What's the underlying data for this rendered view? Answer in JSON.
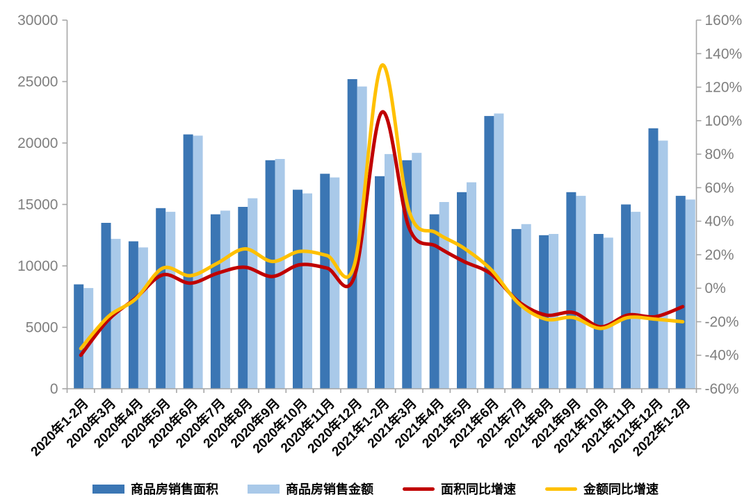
{
  "chart_data": {
    "type": "combo-bar-line",
    "title": "",
    "categories": [
      "2020年1-2月",
      "2020年3月",
      "2020年4月",
      "2020年5月",
      "2020年6月",
      "2020年7月",
      "2020年8月",
      "2020年9月",
      "2020年10月",
      "2020年11月",
      "2020年12月",
      "2021年1-2月",
      "2021年3月",
      "2021年4月",
      "2021年5月",
      "2021年6月",
      "2021年7月",
      "2021年8月",
      "2021年9月",
      "2021年10月",
      "2021年11月",
      "2021年12月",
      "2022年1-2月"
    ],
    "series": [
      {
        "name": "商品房销售面积",
        "type": "bar",
        "axis": "left",
        "color": "#3B76B4",
        "values": [
          8500,
          13500,
          12000,
          14700,
          20700,
          14200,
          14800,
          18600,
          16200,
          17500,
          25200,
          17300,
          18600,
          14200,
          16000,
          22200,
          13000,
          12500,
          16000,
          12600,
          15000,
          21200,
          15700
        ]
      },
      {
        "name": "商品房销售金额",
        "type": "bar",
        "axis": "left",
        "color": "#A9C9E9",
        "values": [
          8200,
          12200,
          11500,
          14400,
          20600,
          14500,
          15500,
          18700,
          15900,
          17200,
          24600,
          19100,
          19200,
          15200,
          16800,
          22400,
          13400,
          12600,
          15700,
          12300,
          14400,
          20200,
          15400
        ]
      },
      {
        "name": "面积同比增速",
        "type": "line",
        "axis": "right",
        "unit": "%",
        "color": "#C00000",
        "values": [
          -40,
          -19,
          -6,
          8,
          3,
          9,
          12.5,
          7,
          14,
          12,
          7,
          105,
          36,
          25,
          16,
          8.5,
          -8,
          -16,
          -14.5,
          -23,
          -16,
          -17,
          -11
        ]
      },
      {
        "name": "金额同比增速",
        "type": "line",
        "axis": "right",
        "unit": "%",
        "color": "#FFC000",
        "values": [
          -36,
          -17,
          -6.5,
          12,
          7.5,
          15,
          23.5,
          16,
          22,
          19.5,
          14,
          133,
          46,
          33,
          24,
          11,
          -9,
          -18.5,
          -17.5,
          -24,
          -17.5,
          -18.5,
          -20
        ]
      }
    ],
    "left_axis": {
      "min": 0,
      "max": 30000,
      "step": 5000,
      "tick_labels": [
        "0",
        "5000",
        "10000",
        "15000",
        "20000",
        "25000",
        "30000"
      ]
    },
    "right_axis": {
      "min": -60,
      "max": 160,
      "step": 20,
      "tick_labels": [
        "-60%",
        "-40%",
        "-20%",
        "0%",
        "20%",
        "40%",
        "60%",
        "80%",
        "100%",
        "120%",
        "140%",
        "160%"
      ]
    },
    "grid": false,
    "legend_position": "bottom"
  },
  "legend": [
    {
      "label": "商品房销售面积",
      "swatch": "bar",
      "color": "#3B76B4"
    },
    {
      "label": "商品房销售金额",
      "swatch": "bar",
      "color": "#A9C9E9"
    },
    {
      "label": "面积同比增速",
      "swatch": "line",
      "color": "#C00000"
    },
    {
      "label": "金额同比增速",
      "swatch": "line",
      "color": "#FFC000"
    }
  ],
  "styles": {
    "axis_line_color": "#A6A6A6",
    "tick_label_color": "#7F7F7F",
    "category_label_color": "#000000",
    "background": "#FFFFFF"
  }
}
